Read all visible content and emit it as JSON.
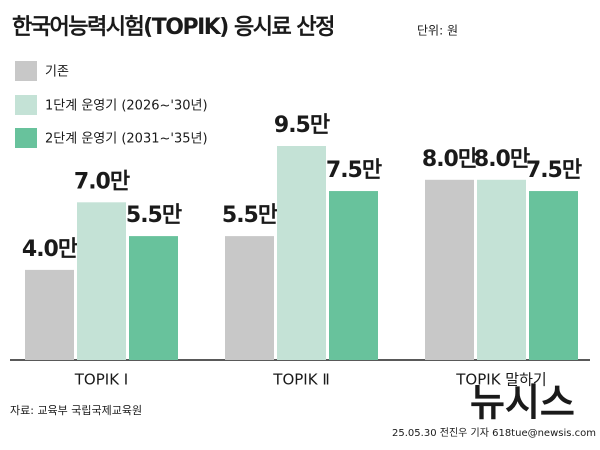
{
  "chart_data": {
    "type": "bar",
    "title": "한국어능력시험(TOPIK) 응시료 산정",
    "unit": "단위: 원",
    "categories": [
      "TOPIK Ⅰ",
      "TOPIK Ⅱ",
      "TOPIK 말하기"
    ],
    "series": [
      {
        "name": "기존",
        "color": "#c8c8c8",
        "label_color": "#cfcfcf",
        "values": [
          4.0,
          5.5,
          8.0
        ],
        "value_labels": [
          "4.0만",
          "5.5만",
          "8.0만"
        ]
      },
      {
        "name": "1단계 운영기 (2026~'30년)",
        "color": "#c4e2d6",
        "label_color": "#1a1a1a",
        "values": [
          7.0,
          9.5,
          8.0
        ],
        "value_labels": [
          "7.0만",
          "9.5만",
          "8.0만"
        ]
      },
      {
        "name": "2단계 운영기 (2031~'35년)",
        "color": "#68c29c",
        "label_color": "#1a1a1a",
        "values": [
          5.5,
          7.5,
          7.5
        ],
        "value_labels": [
          "5.5만",
          "7.5만",
          "7.5만"
        ]
      }
    ],
    "legend": "top-left",
    "source": "자료: 교육부 국립국제교육원",
    "credit": "25.05.30 전진우 기자 618tue@newsis.com",
    "logo": "뉴시스"
  }
}
